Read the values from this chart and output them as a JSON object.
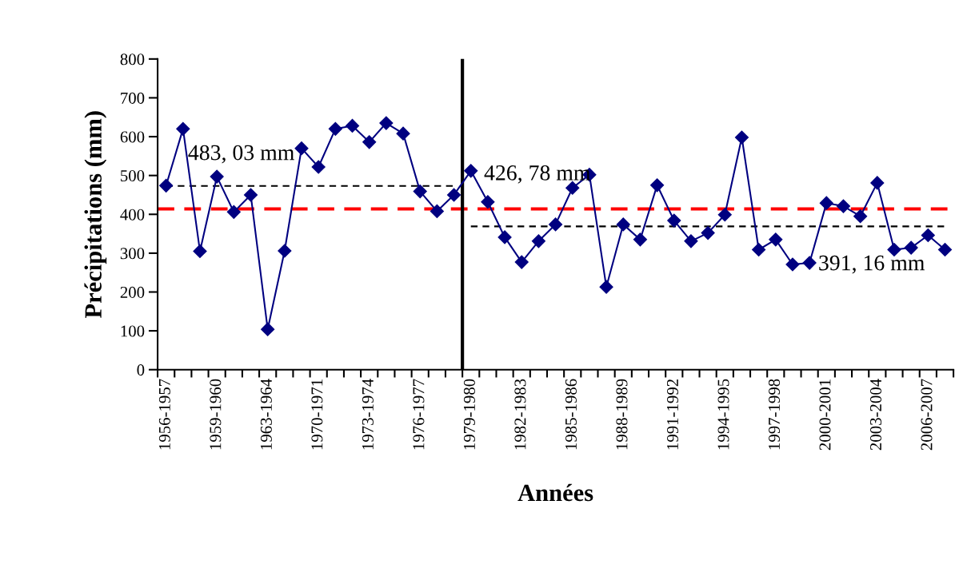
{
  "chart_data": {
    "type": "line",
    "xlabel": "Années",
    "ylabel": "Précipitations (mm)",
    "categories": [
      "1956-1957",
      null,
      null,
      "1959-1960",
      null,
      null,
      "1963-1964",
      null,
      null,
      "1970-1971",
      null,
      null,
      "1973-1974",
      null,
      null,
      "1976-1977",
      null,
      null,
      "1979-1980",
      null,
      null,
      "1982-1983",
      null,
      null,
      "1985-1986",
      null,
      null,
      "1988-1989",
      null,
      null,
      "1991-1992",
      null,
      null,
      "1994-1995",
      null,
      null,
      "1997-1998",
      null,
      null,
      "2000-2001",
      null,
      null,
      "2003-2004",
      null,
      null,
      "2006-2007",
      null
    ],
    "series": [
      {
        "color": "#000080",
        "marker": "diamond",
        "line_style": "solid",
        "values": [
          474,
          620,
          305,
          497,
          406,
          450,
          104,
          306,
          570,
          522,
          620,
          628,
          586,
          635,
          608,
          459,
          408,
          450,
          512,
          432,
          341,
          277,
          331,
          374,
          468,
          502,
          213,
          374,
          335,
          475,
          384,
          331,
          352,
          399,
          598,
          309,
          335,
          271,
          275,
          429,
          421,
          395,
          481,
          309,
          314,
          346,
          309
        ]
      },
      {
        "color": "#000000",
        "marker": "none",
        "line_style": "dashed",
        "values": [
          473,
          473,
          473,
          473,
          473,
          473,
          473,
          473,
          473,
          473,
          473,
          473,
          473,
          473,
          473,
          473,
          473,
          473,
          null,
          null,
          null,
          null,
          null,
          null,
          null,
          null,
          null,
          null,
          null,
          null,
          null,
          null,
          null,
          null,
          null,
          null,
          null,
          null,
          null,
          null,
          null,
          null,
          null,
          null,
          null,
          null,
          null
        ]
      },
      {
        "color": "#000000",
        "marker": "none",
        "line_style": "dashed",
        "values": [
          null,
          null,
          null,
          null,
          null,
          null,
          null,
          null,
          null,
          null,
          null,
          null,
          null,
          null,
          null,
          null,
          null,
          null,
          369,
          369,
          369,
          369,
          369,
          369,
          369,
          369,
          369,
          369,
          369,
          369,
          369,
          369,
          369,
          369,
          369,
          369,
          369,
          369,
          369,
          369,
          369,
          369,
          369,
          369,
          369,
          369,
          369
        ]
      }
    ],
    "ref_lines": [
      {
        "axis": "y",
        "value": 414,
        "color": "#ff0000",
        "line_style": "dashed"
      }
    ],
    "annotations": [
      "483, 03 mm",
      "426, 78 mm",
      "391, 16 mm"
    ],
    "ylim": [
      0,
      800
    ],
    "yticks": [
      0,
      100,
      200,
      300,
      400,
      500,
      600,
      700,
      800
    ],
    "grid": false,
    "legend": false
  }
}
